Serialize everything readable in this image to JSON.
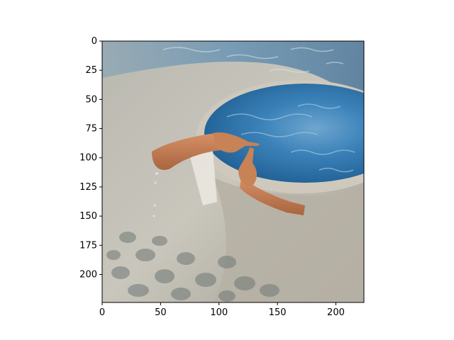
{
  "figure": {
    "background": "#ffffff",
    "axis_color": "#000000"
  },
  "chart_data": {
    "type": "image",
    "image_width": 224,
    "image_height": 224,
    "xlim": [
      0,
      224
    ],
    "ylim": [
      224,
      0
    ],
    "xticks": [
      0,
      50,
      100,
      150,
      200
    ],
    "yticks": [
      0,
      25,
      50,
      75,
      100,
      125,
      150,
      175,
      200
    ],
    "xtick_labels": [
      "0",
      "50",
      "100",
      "150",
      "200"
    ],
    "ytick_labels": [
      "0",
      "25",
      "50",
      "75",
      "100",
      "125",
      "150",
      "175",
      "200"
    ],
    "title": "",
    "xlabel": "",
    "ylabel": "",
    "grid": false
  },
  "image_content": {
    "colors": {
      "deck_light": "#c9c6bc",
      "deck_mid": "#a9a79d",
      "deck_dark": "#8b8a82",
      "pool_deep": "#1f5f93",
      "pool_mid": "#3b82b9",
      "pool_light": "#6fa6cf",
      "hot_tub_wall": "#c4beb2",
      "skin": "#c78256",
      "skin_shadow": "#9d5f3b",
      "stone_dark": "#6f7875",
      "white_block": "#ece9e2"
    }
  }
}
